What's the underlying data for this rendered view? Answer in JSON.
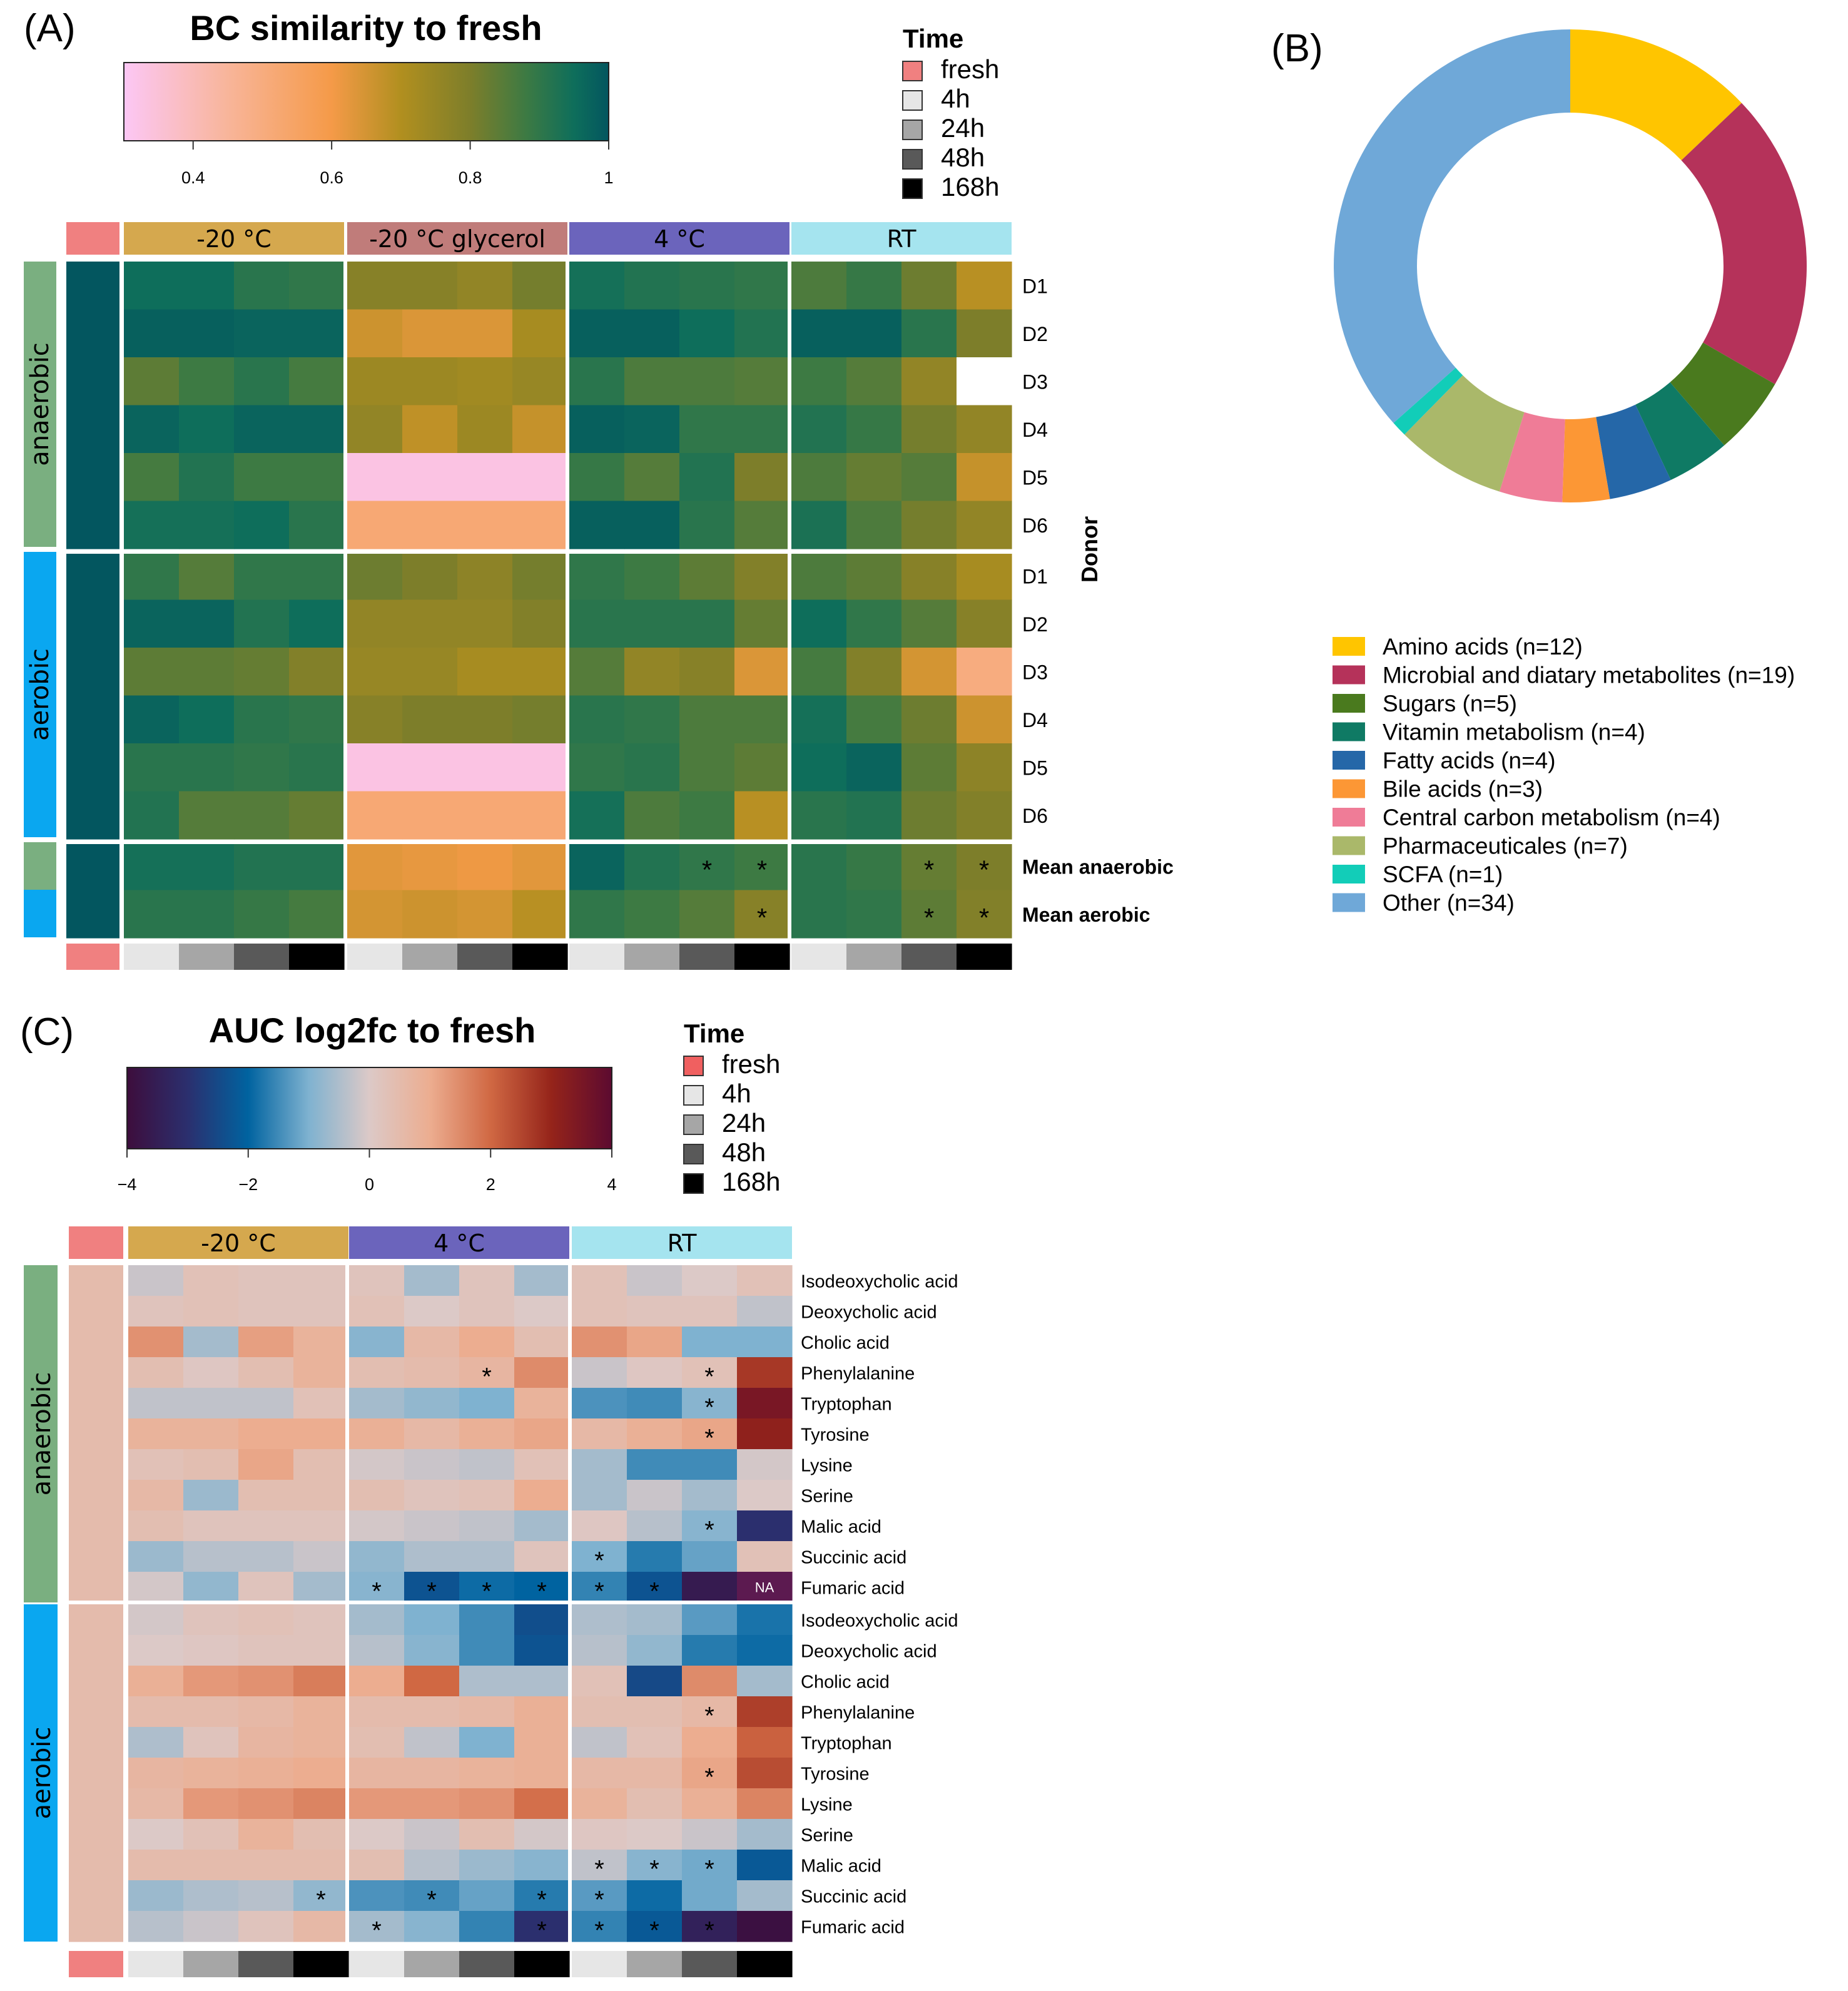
{
  "chart_data": [
    {
      "type": "heatmap",
      "panel_label": "(A)",
      "title": "BC similarity to fresh",
      "colorbar": {
        "ticks": [
          "0.4",
          "0.6",
          "0.8",
          "1"
        ],
        "tick_values": [
          0.4,
          0.6,
          0.8,
          1.0
        ],
        "range": [
          0.3,
          1.0
        ],
        "stops": [
          {
            "v": 0.3,
            "c": "#fcc7f5"
          },
          {
            "v": 0.45,
            "c": "#f8b59a"
          },
          {
            "v": 0.6,
            "c": "#f59a48"
          },
          {
            "v": 0.7,
            "c": "#b18f1f"
          },
          {
            "v": 0.8,
            "c": "#7d7e2a"
          },
          {
            "v": 0.88,
            "c": "#3d7a43"
          },
          {
            "v": 0.95,
            "c": "#0e6e5b"
          },
          {
            "v": 1.0,
            "c": "#03565f"
          }
        ]
      },
      "time_legend": {
        "title": "Time",
        "items": [
          {
            "label": "fresh",
            "color": "#f08080"
          },
          {
            "label": "4h",
            "color": "#e6e6e6"
          },
          {
            "label": "24h",
            "color": "#a6a6a6"
          },
          {
            "label": "48h",
            "color": "#595959"
          },
          {
            "label": "168h",
            "color": "#000000"
          }
        ]
      },
      "column_groups": [
        {
          "label": "-20 °C",
          "color": "#d5a84e"
        },
        {
          "label": "-20 °C glycerol",
          "color": "#c07c7a"
        },
        {
          "label": "4 °C",
          "color": "#6b64bc"
        },
        {
          "label": "RT",
          "color": "#a5e4ef"
        }
      ],
      "fresh_color": "#f08080",
      "time_colors": [
        "#e6e6e6",
        "#a6a6a6",
        "#595959",
        "#000000"
      ],
      "row_groups": [
        {
          "label": "anaerobic",
          "color": "#7aaf80"
        },
        {
          "label": "aerobic",
          "color": "#0aa7f0"
        }
      ],
      "row_axis_label": "Donor",
      "rows": [
        "D1",
        "D2",
        "D3",
        "D4",
        "D5",
        "D6"
      ],
      "mean_rows": [
        "Mean anaerobic",
        "Mean aerobic"
      ],
      "fresh_value": 1.0,
      "values_anaerobic": [
        [
          0.95,
          0.95,
          0.91,
          0.9,
          0.78,
          0.78,
          0.76,
          0.81,
          0.94,
          0.92,
          0.91,
          0.9,
          0.86,
          0.89,
          0.82,
          0.69
        ],
        [
          0.98,
          0.98,
          0.97,
          0.97,
          0.66,
          0.64,
          0.64,
          0.72,
          0.98,
          0.98,
          0.95,
          0.92,
          0.98,
          0.98,
          0.91,
          0.8
        ],
        [
          0.84,
          0.88,
          0.91,
          0.87,
          0.74,
          0.74,
          0.73,
          0.75,
          0.91,
          0.86,
          0.86,
          0.85,
          0.88,
          0.85,
          0.76,
          null
        ],
        [
          0.97,
          0.95,
          0.97,
          0.97,
          0.76,
          0.68,
          0.74,
          0.67,
          0.98,
          0.97,
          0.9,
          0.9,
          0.92,
          0.89,
          0.81,
          0.76
        ],
        [
          0.87,
          0.92,
          0.88,
          0.88,
          0.33,
          0.33,
          0.33,
          0.33,
          0.89,
          0.85,
          0.92,
          0.8,
          0.86,
          0.83,
          0.85,
          0.67
        ],
        [
          0.94,
          0.94,
          0.95,
          0.91,
          0.52,
          0.52,
          0.52,
          0.52,
          0.98,
          0.98,
          0.91,
          0.85,
          0.93,
          0.86,
          0.81,
          0.76
        ]
      ],
      "values_aerobic": [
        [
          0.9,
          0.85,
          0.9,
          0.9,
          0.82,
          0.8,
          0.77,
          0.81,
          0.9,
          0.88,
          0.84,
          0.79,
          0.86,
          0.84,
          0.78,
          0.72
        ],
        [
          0.97,
          0.97,
          0.92,
          0.95,
          0.76,
          0.76,
          0.76,
          0.79,
          0.91,
          0.91,
          0.91,
          0.83,
          0.95,
          0.9,
          0.85,
          0.78
        ],
        [
          0.84,
          0.84,
          0.83,
          0.79,
          0.75,
          0.75,
          0.72,
          0.72,
          0.85,
          0.76,
          0.78,
          0.64,
          0.87,
          0.79,
          0.65,
          0.5
        ],
        [
          0.97,
          0.95,
          0.91,
          0.9,
          0.78,
          0.8,
          0.8,
          0.81,
          0.91,
          0.9,
          0.86,
          0.86,
          0.94,
          0.87,
          0.82,
          0.66
        ],
        [
          0.91,
          0.91,
          0.9,
          0.91,
          0.33,
          0.33,
          0.33,
          0.33,
          0.9,
          0.91,
          0.86,
          0.84,
          0.95,
          0.97,
          0.84,
          0.77
        ],
        [
          0.92,
          0.85,
          0.85,
          0.83,
          0.52,
          0.52,
          0.52,
          0.52,
          0.94,
          0.86,
          0.88,
          0.69,
          0.91,
          0.92,
          0.82,
          0.79
        ]
      ],
      "values_mean": [
        [
          0.94,
          0.94,
          0.92,
          0.92,
          0.63,
          0.62,
          0.61,
          0.63,
          0.97,
          0.92,
          0.9,
          0.88,
          0.91,
          0.89,
          0.83,
          0.8
        ],
        [
          0.91,
          0.91,
          0.89,
          0.87,
          0.65,
          0.66,
          0.65,
          0.69,
          0.9,
          0.88,
          0.85,
          0.78,
          0.91,
          0.9,
          0.84,
          0.79
        ]
      ],
      "stars_mean": [
        [
          false,
          false,
          false,
          false,
          false,
          false,
          false,
          false,
          false,
          false,
          true,
          true,
          false,
          false,
          true,
          true
        ],
        [
          false,
          false,
          false,
          false,
          false,
          false,
          false,
          false,
          false,
          false,
          false,
          true,
          false,
          false,
          true,
          true
        ]
      ]
    },
    {
      "type": "pie",
      "panel_label": "(B)",
      "donut": true,
      "labels": [
        "Amino acids (n=12)",
        "Microbial and diatary metabolites (n=19)",
        "Sugars (n=5)",
        "Vitamin metabolism (n=4)",
        "Fatty acids (n=4)",
        "Bile acids (n=3)",
        "Central carbon metabolism (n=4)",
        "Pharmaceuticales (n=7)",
        "SCFA (n=1)",
        "Other (n=34)"
      ],
      "values": [
        12,
        19,
        5,
        4,
        4,
        3,
        4,
        7,
        1,
        34
      ],
      "colors": [
        "#ffc500",
        "#b5325a",
        "#4a7a1e",
        "#0f7a64",
        "#2567a8",
        "#fc9735",
        "#ef7c97",
        "#aab86a",
        "#12cdb8",
        "#6fa8d8"
      ]
    },
    {
      "type": "heatmap",
      "panel_label": "(C)",
      "title": "AUC log2fc to fresh",
      "colorbar": {
        "ticks": [
          "−4",
          "−2",
          "0",
          "2",
          "4"
        ],
        "tick_values": [
          -4,
          -2,
          0,
          2,
          4
        ],
        "range": [
          -4,
          4
        ],
        "stops": [
          {
            "v": -4.0,
            "c": "#3d0d3c"
          },
          {
            "v": -3.0,
            "c": "#2b2f6e"
          },
          {
            "v": -2.0,
            "c": "#0063a0"
          },
          {
            "v": -1.0,
            "c": "#7fb2d0"
          },
          {
            "v": 0.0,
            "c": "#dcc9c7"
          },
          {
            "v": 1.0,
            "c": "#ecad90"
          },
          {
            "v": 2.0,
            "c": "#d06843"
          },
          {
            "v": 3.0,
            "c": "#95241a"
          },
          {
            "v": 4.0,
            "c": "#5c0a30"
          }
        ]
      },
      "time_legend": {
        "title": "Time",
        "items": [
          {
            "label": "fresh",
            "color": "#f06060"
          },
          {
            "label": "4h",
            "color": "#e6e6e6"
          },
          {
            "label": "24h",
            "color": "#a6a6a6"
          },
          {
            "label": "48h",
            "color": "#595959"
          },
          {
            "label": "168h",
            "color": "#000000"
          }
        ]
      },
      "column_groups": [
        {
          "label": "-20 °C",
          "color": "#d5a84e"
        },
        {
          "label": "4 °C",
          "color": "#6b64bc"
        },
        {
          "label": "RT",
          "color": "#a5e4ef"
        }
      ],
      "fresh_color": "#f08080",
      "time_colors": [
        "#e6e6e6",
        "#a6a6a6",
        "#595959",
        "#000000"
      ],
      "row_groups": [
        {
          "label": "anaerobic",
          "color": "#7aaf80"
        },
        {
          "label": "aerobic",
          "color": "#0aa7f0"
        }
      ],
      "rows": [
        "Isodeoxycholic acid",
        "Deoxycholic acid",
        "Cholic acid",
        "Phenylalanine",
        "Tryptophan",
        "Tyrosine",
        "Lysine",
        "Serine",
        "Malic acid",
        "Succinic acid",
        "Fumaric acid"
      ],
      "fresh_value": 0.5,
      "na_label": "NA",
      "na_color": "#5c1a50",
      "values_anaerobic": [
        [
          -0.2,
          0.3,
          0.2,
          0.2,
          0.2,
          -0.6,
          0.2,
          -0.6,
          0.3,
          -0.2,
          0.0,
          0.3
        ],
        [
          0.2,
          0.3,
          0.2,
          0.2,
          0.3,
          0.0,
          0.2,
          0.0,
          0.3,
          0.2,
          0.2,
          -0.3
        ],
        [
          1.4,
          -0.6,
          1.2,
          0.8,
          -0.9,
          0.6,
          1.0,
          0.4,
          1.4,
          1.1,
          -1.0,
          -1.0
        ],
        [
          0.4,
          0.1,
          0.4,
          0.8,
          0.4,
          0.5,
          0.7,
          1.5,
          -0.2,
          0.1,
          0.3,
          2.7
        ],
        [
          -0.3,
          -0.3,
          -0.3,
          0.3,
          -0.6,
          -0.8,
          -1.0,
          0.8,
          -1.4,
          -1.5,
          -0.9,
          3.5
        ],
        [
          0.8,
          0.8,
          1.0,
          1.0,
          0.9,
          0.6,
          0.9,
          1.1,
          0.6,
          0.9,
          1.1,
          3.1
        ],
        [
          0.3,
          0.4,
          1.1,
          0.4,
          -0.1,
          -0.2,
          -0.3,
          0.3,
          -0.6,
          -1.5,
          -1.5,
          -0.1
        ],
        [
          0.6,
          -0.7,
          0.4,
          0.4,
          0.4,
          0.2,
          0.3,
          1.0,
          -0.6,
          -0.2,
          -0.6,
          0.0
        ],
        [
          0.4,
          0.2,
          0.2,
          0.2,
          -0.1,
          -0.2,
          -0.3,
          -0.6,
          0.1,
          -0.4,
          -0.9,
          -3.0
        ],
        [
          -0.7,
          -0.4,
          -0.4,
          -0.2,
          -0.8,
          -0.5,
          -0.5,
          0.2,
          -1.0,
          -1.7,
          -1.2,
          0.3
        ],
        [
          -0.1,
          -0.8,
          0.2,
          -0.6,
          -0.9,
          -2.3,
          -1.9,
          -2.0,
          -1.6,
          -2.3,
          -3.6,
          null
        ]
      ],
      "values_aerobic": [
        [
          -0.1,
          0.2,
          0.3,
          0.2,
          -0.6,
          -1.0,
          -1.5,
          -2.4,
          -0.5,
          -0.6,
          -1.3,
          -1.8
        ],
        [
          0.0,
          0.1,
          0.2,
          0.2,
          -0.4,
          -0.9,
          -1.5,
          -2.3,
          -0.4,
          -0.8,
          -1.7,
          -1.9
        ],
        [
          0.9,
          1.3,
          1.4,
          1.7,
          1.0,
          2.0,
          -0.5,
          -0.5,
          0.3,
          -2.5,
          1.5,
          -0.6
        ],
        [
          0.5,
          0.5,
          0.6,
          0.8,
          0.5,
          0.5,
          0.6,
          0.9,
          0.4,
          0.4,
          0.6,
          2.6
        ],
        [
          -0.5,
          0.2,
          0.7,
          0.8,
          0.4,
          -0.3,
          -1.0,
          0.9,
          -0.3,
          0.3,
          1.0,
          2.1
        ],
        [
          0.7,
          0.8,
          0.9,
          1.0,
          0.7,
          0.7,
          0.8,
          0.9,
          0.6,
          0.6,
          1.1,
          2.4
        ],
        [
          0.6,
          1.3,
          1.4,
          1.6,
          1.3,
          1.3,
          1.4,
          1.9,
          0.8,
          0.4,
          0.9,
          1.6
        ],
        [
          0.0,
          0.3,
          0.8,
          0.4,
          0.0,
          -0.2,
          0.4,
          -0.1,
          0.1,
          0.0,
          -0.2,
          -0.6
        ],
        [
          0.5,
          0.5,
          0.5,
          0.5,
          0.4,
          -0.4,
          -0.7,
          -0.9,
          -0.3,
          -0.9,
          -1.1,
          -2.2
        ],
        [
          -0.7,
          -0.5,
          -0.4,
          -0.8,
          -1.4,
          -1.5,
          -1.2,
          -1.7,
          -1.3,
          -1.9,
          -1.1,
          -0.6
        ],
        [
          -0.4,
          -0.2,
          0.2,
          0.6,
          -0.6,
          -0.9,
          -1.6,
          -3.0,
          -1.6,
          -2.2,
          -3.4,
          -3.9
        ]
      ],
      "stars_anaerobic": [
        [],
        [],
        [],
        [
          7,
          11
        ],
        [
          11
        ],
        [
          11
        ],
        [],
        [],
        [
          11
        ],
        [
          9
        ],
        [
          5,
          6,
          7,
          8,
          9,
          10
        ]
      ],
      "stars_aerobic": [
        [],
        [],
        [],
        [
          11
        ],
        [],
        [
          11
        ],
        [],
        [],
        [
          9,
          10,
          11
        ],
        [
          4,
          6,
          8,
          9
        ],
        [
          5,
          8,
          9,
          10,
          11
        ]
      ]
    }
  ]
}
